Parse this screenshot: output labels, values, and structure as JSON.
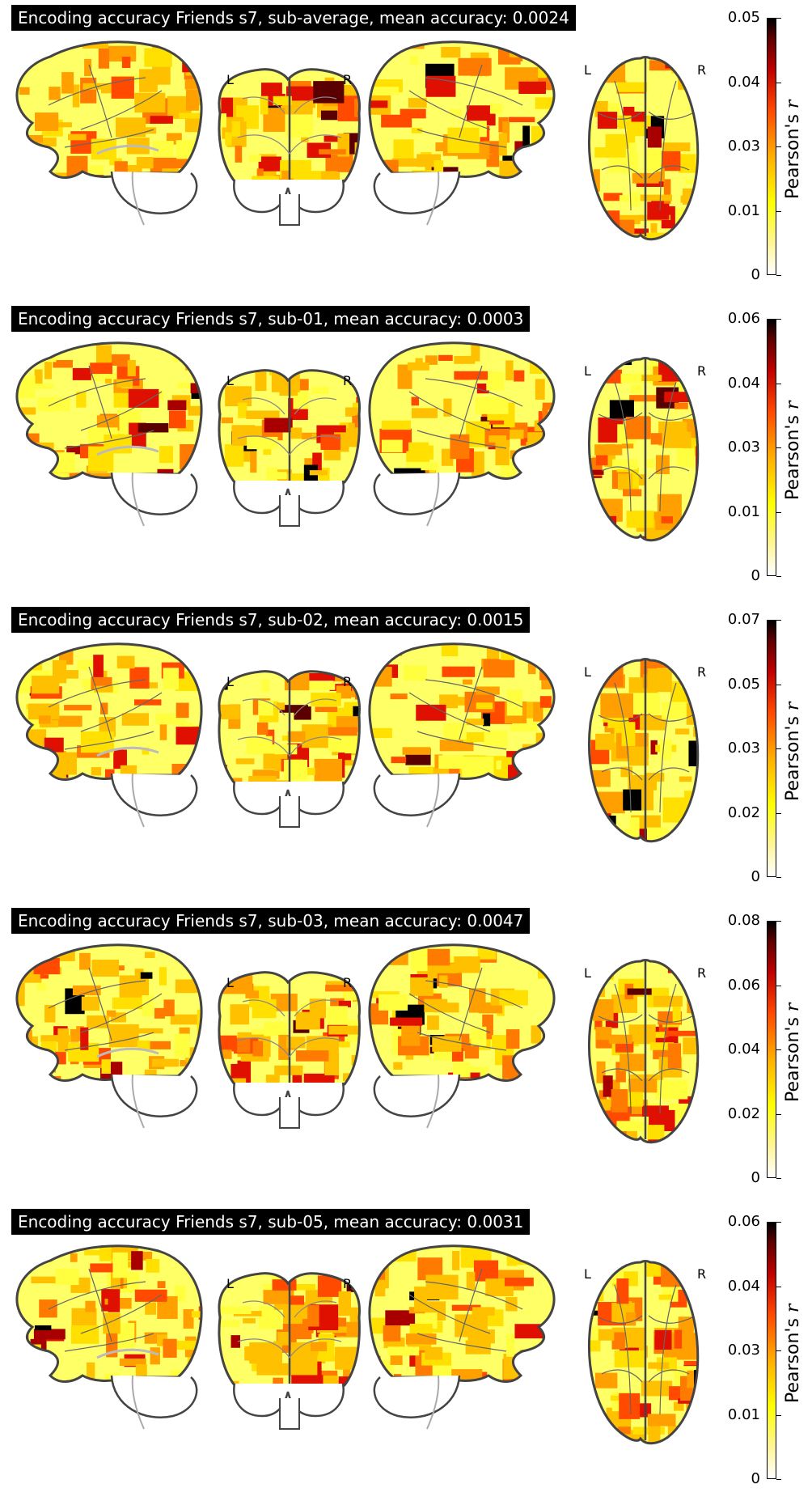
{
  "colorbar_label_prefix": "Pearson's",
  "colorbar_label_var": "r",
  "colors": {
    "cold": "#ffff00",
    "mid": "#ff8c00",
    "hot": "#c00000",
    "max": "#000000"
  },
  "panels": [
    {
      "title": "Encoding accuracy Friends s7, sub-average, mean accuracy: 0.0024",
      "colorbar_ticks": [
        "0.05",
        "0.04",
        "0.03",
        "0.01",
        "0"
      ],
      "lr_left": "L",
      "lr_right": "R"
    },
    {
      "title": "Encoding accuracy Friends s7, sub-01, mean accuracy: 0.0003",
      "colorbar_ticks": [
        "0.06",
        "0.04",
        "0.03",
        "0.01",
        "0"
      ],
      "lr_left": "L",
      "lr_right": "R"
    },
    {
      "title": "Encoding accuracy Friends s7, sub-02, mean accuracy: 0.0015",
      "colorbar_ticks": [
        "0.07",
        "0.05",
        "0.03",
        "0.02",
        "0"
      ],
      "lr_left": "L",
      "lr_right": "R"
    },
    {
      "title": "Encoding accuracy Friends s7, sub-03, mean accuracy: 0.0047",
      "colorbar_ticks": [
        "0.08",
        "0.06",
        "0.04",
        "0.02",
        "0"
      ],
      "lr_left": "L",
      "lr_right": "R"
    },
    {
      "title": "Encoding accuracy Friends s7, sub-05, mean accuracy: 0.0031",
      "colorbar_ticks": [
        "0.06",
        "0.04",
        "0.03",
        "0.01",
        "0"
      ],
      "lr_left": "L",
      "lr_right": "R"
    }
  ]
}
